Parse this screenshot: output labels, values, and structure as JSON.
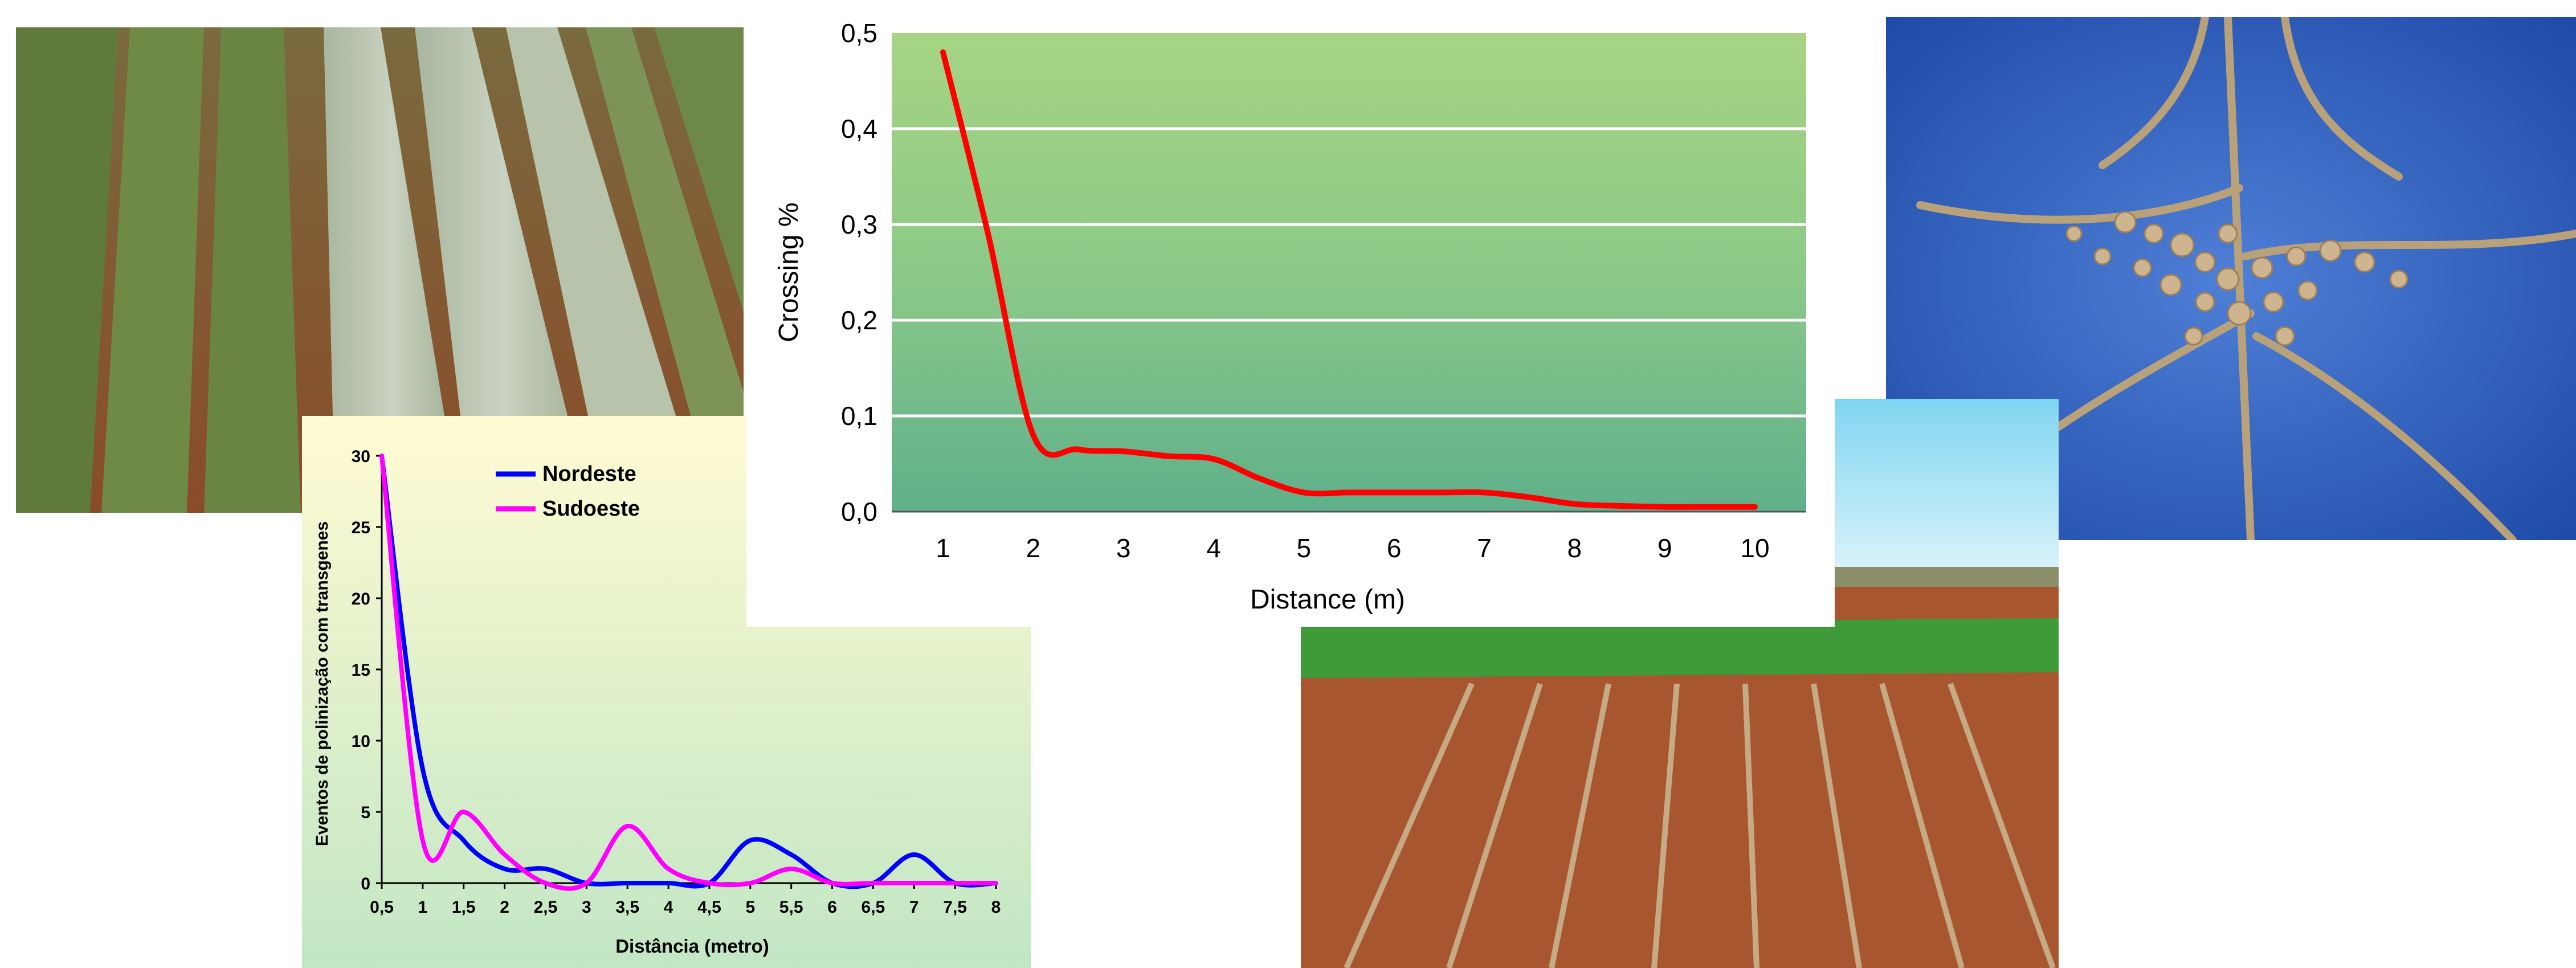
{
  "chart_data": [
    {
      "type": "line",
      "xlabel": "Distance (m)",
      "ylabel": "Crossing %",
      "x_ticks": [
        "1",
        "2",
        "3",
        "4",
        "5",
        "6",
        "7",
        "8",
        "9",
        "10"
      ],
      "y_ticks": [
        "0,0",
        "0,1",
        "0,2",
        "0,3",
        "0,4",
        "0,5"
      ],
      "xlim": [
        1,
        10
      ],
      "ylim": [
        0,
        0.5
      ],
      "grid": true,
      "series": [
        {
          "color": "#ff0000",
          "x": [
            1,
            1.5,
            2,
            2.5,
            3,
            3.5,
            4,
            4.5,
            5,
            5.5,
            6,
            6.5,
            7,
            7.5,
            8,
            8.5,
            9,
            9.5,
            10
          ],
          "y": [
            0.48,
            0.29,
            0.08,
            0.065,
            0.063,
            0.058,
            0.055,
            0.035,
            0.02,
            0.02,
            0.02,
            0.02,
            0.02,
            0.015,
            0.008,
            0.006,
            0.005,
            0.005,
            0.005
          ]
        }
      ]
    },
    {
      "type": "line",
      "xlabel": "Distância (metro)",
      "ylabel": "Eventos de polinização com transgenes",
      "x_ticks": [
        "0,5",
        "1",
        "1,5",
        "2",
        "2,5",
        "3",
        "3,5",
        "4",
        "4,5",
        "5",
        "5,5",
        "6",
        "6,5",
        "7",
        "7,5",
        "8"
      ],
      "y_ticks": [
        "0",
        "5",
        "10",
        "15",
        "20",
        "25",
        "30"
      ],
      "xlim": [
        0.5,
        8
      ],
      "ylim": [
        0,
        30
      ],
      "legend": "top-left",
      "series": [
        {
          "name": "Nordeste",
          "color": "#0000ff",
          "x": [
            0.5,
            1,
            1.5,
            2,
            2.5,
            3,
            3.5,
            4,
            4.5,
            5,
            5.5,
            6,
            6.5,
            7,
            7.5,
            8
          ],
          "y": [
            30,
            8,
            3,
            1,
            1,
            0,
            0,
            0,
            0,
            3,
            2,
            0,
            0,
            2,
            0,
            0
          ]
        },
        {
          "name": "Sudoeste",
          "color": "#ff00ff",
          "x": [
            0.5,
            1,
            1.5,
            2,
            2.5,
            3,
            3.5,
            4,
            4.5,
            5,
            5.5,
            6,
            6.5,
            7,
            7.5,
            8
          ],
          "y": [
            30,
            3,
            5,
            2,
            0,
            0,
            4,
            1,
            0,
            0,
            1,
            0,
            0,
            0,
            0,
            0
          ]
        }
      ]
    }
  ]
}
